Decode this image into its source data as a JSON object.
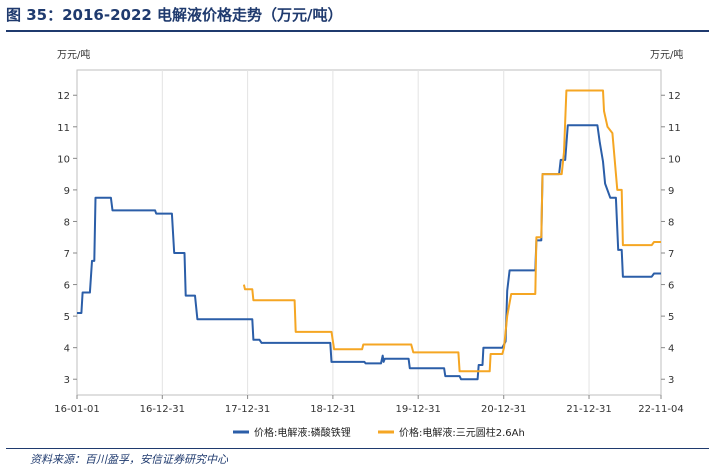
{
  "figure": {
    "title": "图 35：2016-2022 电解液价格走势（万元/吨）",
    "source": "资料来源：百川盈孚，安信证券研究中心"
  },
  "chart_data": {
    "type": "line",
    "x_axis_type": "date",
    "xlim": [
      "2016-01-01",
      "2022-11-04"
    ],
    "x_tick_values": [
      "2016-01-01",
      "2016-12-31",
      "2017-12-31",
      "2018-12-31",
      "2019-12-31",
      "2020-12-31",
      "2021-12-31",
      "2022-11-04"
    ],
    "x_tick_labels": [
      "16-01-01",
      "16-12-31",
      "17-12-31",
      "18-12-31",
      "19-12-31",
      "20-12-31",
      "21-12-31",
      "22-11-04"
    ],
    "ylim": [
      2.5,
      12.8
    ],
    "y_ticks": [
      3,
      4,
      5,
      6,
      7,
      8,
      9,
      10,
      11,
      12
    ],
    "ylabel_left": "万元/吨",
    "ylabel_right": "万元/吨",
    "grid": "vertical",
    "legend_position": "bottom",
    "series": [
      {
        "name": "价格:电解液:磷酸铁锂",
        "color": "#2b5ea8",
        "points": [
          [
            "2016-01-01",
            5.1
          ],
          [
            "2016-01-20",
            5.1
          ],
          [
            "2016-01-25",
            5.75
          ],
          [
            "2016-02-25",
            5.75
          ],
          [
            "2016-03-05",
            6.75
          ],
          [
            "2016-03-15",
            6.75
          ],
          [
            "2016-03-20",
            8.75
          ],
          [
            "2016-05-25",
            8.75
          ],
          [
            "2016-06-01",
            8.35
          ],
          [
            "2016-11-30",
            8.35
          ],
          [
            "2016-12-05",
            8.25
          ],
          [
            "2017-02-10",
            8.25
          ],
          [
            "2017-02-20",
            7.0
          ],
          [
            "2017-04-05",
            7.0
          ],
          [
            "2017-04-10",
            5.65
          ],
          [
            "2017-05-20",
            5.65
          ],
          [
            "2017-05-30",
            4.9
          ],
          [
            "2018-01-20",
            4.9
          ],
          [
            "2018-01-25",
            4.25
          ],
          [
            "2018-02-20",
            4.25
          ],
          [
            "2018-03-01",
            4.15
          ],
          [
            "2018-12-20",
            4.15
          ],
          [
            "2018-12-25",
            3.55
          ],
          [
            "2019-05-15",
            3.55
          ],
          [
            "2019-05-20",
            3.5
          ],
          [
            "2019-07-25",
            3.5
          ],
          [
            "2019-08-01",
            3.75
          ],
          [
            "2019-08-05",
            3.55
          ],
          [
            "2019-08-10",
            3.65
          ],
          [
            "2019-11-20",
            3.65
          ],
          [
            "2019-11-25",
            3.35
          ],
          [
            "2020-04-20",
            3.35
          ],
          [
            "2020-04-25",
            3.1
          ],
          [
            "2020-06-25",
            3.1
          ],
          [
            "2020-07-01",
            3.0
          ],
          [
            "2020-09-10",
            3.0
          ],
          [
            "2020-09-15",
            3.45
          ],
          [
            "2020-10-01",
            3.45
          ],
          [
            "2020-10-05",
            4.0
          ],
          [
            "2020-12-25",
            4.0
          ],
          [
            "2021-01-01",
            4.1
          ],
          [
            "2021-01-08",
            4.2
          ],
          [
            "2021-01-15",
            5.8
          ],
          [
            "2021-01-25",
            6.45
          ],
          [
            "2021-05-15",
            6.45
          ],
          [
            "2021-05-20",
            7.4
          ],
          [
            "2021-06-10",
            7.4
          ],
          [
            "2021-06-15",
            9.5
          ],
          [
            "2021-08-25",
            9.5
          ],
          [
            "2021-09-01",
            9.95
          ],
          [
            "2021-09-20",
            9.95
          ],
          [
            "2021-10-01",
            11.05
          ],
          [
            "2022-02-05",
            11.05
          ],
          [
            "2022-02-15",
            10.5
          ],
          [
            "2022-03-01",
            9.9
          ],
          [
            "2022-03-10",
            9.2
          ],
          [
            "2022-04-01",
            8.75
          ],
          [
            "2022-04-25",
            8.75
          ],
          [
            "2022-05-05",
            7.1
          ],
          [
            "2022-05-20",
            7.1
          ],
          [
            "2022-05-25",
            6.25
          ],
          [
            "2022-09-25",
            6.25
          ],
          [
            "2022-10-05",
            6.35
          ],
          [
            "2022-11-04",
            6.35
          ]
        ]
      },
      {
        "name": "价格:电解液:三元圆柱2.6Ah",
        "color": "#f5a623",
        "points": [
          [
            "2017-12-15",
            6.0
          ],
          [
            "2017-12-20",
            5.85
          ],
          [
            "2018-01-20",
            5.85
          ],
          [
            "2018-01-25",
            5.5
          ],
          [
            "2018-07-20",
            5.5
          ],
          [
            "2018-07-25",
            4.5
          ],
          [
            "2018-12-25",
            4.5
          ],
          [
            "2019-01-05",
            3.95
          ],
          [
            "2019-05-05",
            3.95
          ],
          [
            "2019-05-10",
            4.1
          ],
          [
            "2019-12-01",
            4.1
          ],
          [
            "2019-12-10",
            3.85
          ],
          [
            "2020-06-20",
            3.85
          ],
          [
            "2020-06-25",
            3.25
          ],
          [
            "2020-11-01",
            3.25
          ],
          [
            "2020-11-05",
            3.8
          ],
          [
            "2020-12-25",
            3.8
          ],
          [
            "2021-01-01",
            4.0
          ],
          [
            "2021-01-15",
            5.0
          ],
          [
            "2021-02-01",
            5.7
          ],
          [
            "2021-05-15",
            5.7
          ],
          [
            "2021-05-20",
            7.5
          ],
          [
            "2021-06-10",
            7.5
          ],
          [
            "2021-06-15",
            9.5
          ],
          [
            "2021-09-05",
            9.5
          ],
          [
            "2021-09-15",
            10.2
          ],
          [
            "2021-09-25",
            12.15
          ],
          [
            "2022-03-01",
            12.15
          ],
          [
            "2022-03-05",
            11.5
          ],
          [
            "2022-03-20",
            11.0
          ],
          [
            "2022-04-10",
            10.8
          ],
          [
            "2022-05-01",
            9.0
          ],
          [
            "2022-05-20",
            9.0
          ],
          [
            "2022-05-25",
            7.25
          ],
          [
            "2022-09-25",
            7.25
          ],
          [
            "2022-10-05",
            7.35
          ],
          [
            "2022-11-04",
            7.35
          ]
        ]
      }
    ]
  }
}
